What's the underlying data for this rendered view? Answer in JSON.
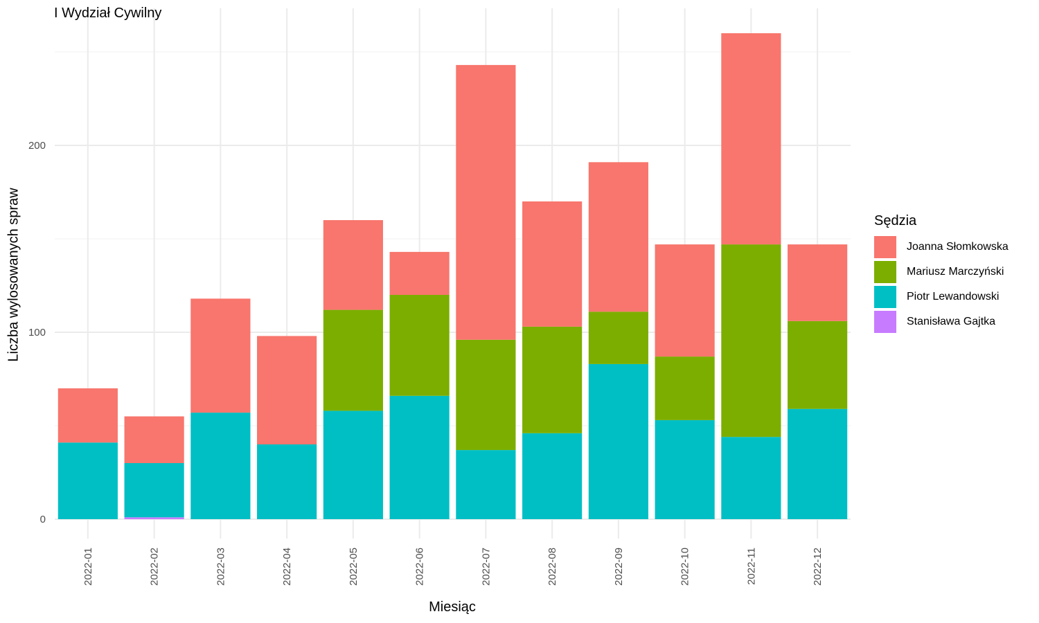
{
  "chart_data": {
    "type": "bar",
    "stacked": true,
    "title": "I Wydział Cywilny",
    "xlabel": "Miesiąc",
    "ylabel": "Liczba wylosowanych spraw",
    "ylim": [
      0,
      260
    ],
    "yticks": [
      0,
      100,
      200
    ],
    "grid": true,
    "legend": {
      "title": "Sędzia",
      "position": "right"
    },
    "categories": [
      "2022-01",
      "2022-02",
      "2022-03",
      "2022-04",
      "2022-05",
      "2022-06",
      "2022-07",
      "2022-08",
      "2022-09",
      "2022-10",
      "2022-11",
      "2022-12"
    ],
    "series": [
      {
        "name": "Joanna Słomkowska",
        "color": "#F8766D",
        "values": [
          29,
          25,
          61,
          58,
          48,
          23,
          147,
          67,
          80,
          60,
          113,
          41
        ]
      },
      {
        "name": "Mariusz Marczyński",
        "color": "#7CAE00",
        "values": [
          0,
          0,
          0,
          0,
          54,
          54,
          59,
          57,
          28,
          34,
          103,
          47
        ]
      },
      {
        "name": "Piotr Lewandowski",
        "color": "#00BFC4",
        "values": [
          41,
          29,
          57,
          40,
          58,
          66,
          37,
          46,
          83,
          53,
          44,
          59
        ]
      },
      {
        "name": "Stanisława Gajtka",
        "color": "#C77CFF",
        "values": [
          0,
          1,
          0,
          0,
          0,
          0,
          0,
          0,
          0,
          0,
          0,
          0
        ]
      }
    ]
  }
}
